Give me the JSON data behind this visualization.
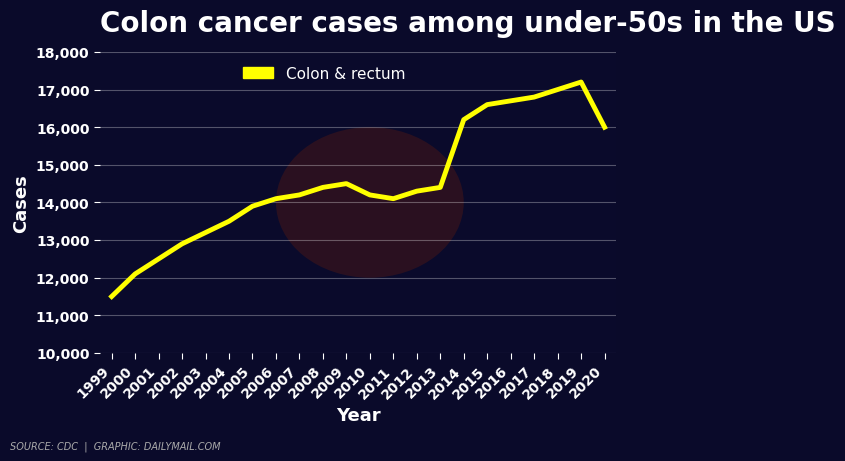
{
  "title": "Colon cancer cases among under-50s in the US",
  "legend_label": "Colon & rectum",
  "xlabel": "Year",
  "ylabel": "Cases",
  "source_text": "SOURCE: CDC  |  GRAPHIC: DAILYMAIL.COM",
  "years": [
    1999,
    2000,
    2001,
    2002,
    2003,
    2004,
    2005,
    2006,
    2007,
    2008,
    2009,
    2010,
    2011,
    2012,
    2013,
    2014,
    2015,
    2016,
    2017,
    2018,
    2019,
    2020
  ],
  "values": [
    11500,
    12100,
    12500,
    12900,
    13200,
    13500,
    13900,
    14100,
    14200,
    14400,
    14500,
    14200,
    14100,
    14300,
    14400,
    16200,
    16600,
    16700,
    16800,
    17000,
    17200,
    16000
  ],
  "line_color": "#FFFF00",
  "line_width": 3.5,
  "bg_color": "#0a0a2a",
  "grid_color": "#ffffff",
  "title_color": "#ffffff",
  "axis_label_color": "#ffffff",
  "tick_label_color": "#ffffff",
  "ylim": [
    10000,
    18000
  ],
  "yticks": [
    10000,
    11000,
    12000,
    13000,
    14000,
    15000,
    16000,
    17000,
    18000
  ],
  "title_fontsize": 20,
  "axis_label_fontsize": 13,
  "tick_fontsize": 10,
  "legend_fontsize": 11,
  "source_fontsize": 7
}
